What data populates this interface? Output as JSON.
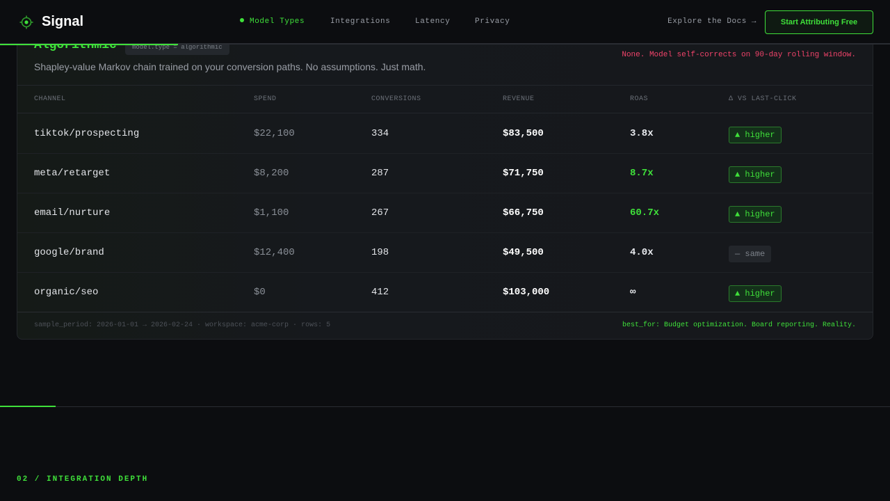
{
  "header": {
    "brand": "Signal",
    "nav": [
      "Model Types",
      "Integrations",
      "Latency",
      "Privacy"
    ],
    "active_nav": "Model Types",
    "docs_link": "Explore the Docs →",
    "cta": "Start Attributing Free"
  },
  "model": {
    "title": "Algorithmic",
    "tag": "model.type = algorithmic",
    "description": "Shapley-value Markov chain trained on your conversion paths. No assumptions. Just math.",
    "risk_note": "None. Model self-corrects on 90-day rolling window."
  },
  "table": {
    "columns": [
      "CHANNEL",
      "SPEND",
      "CONVERSIONS",
      "REVENUE",
      "ROAS",
      "Δ VS LAST-CLICK"
    ],
    "rows": [
      {
        "channel": "tiktok/prospecting",
        "spend": "$22,100",
        "conversions": "334",
        "revenue": "$83,500",
        "roas": "3.8x",
        "delta": "▲ higher"
      },
      {
        "channel": "meta/retarget",
        "spend": "$8,200",
        "conversions": "287",
        "revenue": "$71,750",
        "roas": "8.7x",
        "delta": "▲ higher"
      },
      {
        "channel": "email/nurture",
        "spend": "$1,100",
        "conversions": "267",
        "revenue": "$66,750",
        "roas": "60.7x",
        "delta": "▲ higher"
      },
      {
        "channel": "google/brand",
        "spend": "$12,400",
        "conversions": "198",
        "revenue": "$49,500",
        "roas": "4.0x",
        "delta": "— same"
      },
      {
        "channel": "organic/seo",
        "spend": "$0",
        "conversions": "412",
        "revenue": "$103,000",
        "roas": "∞",
        "delta": "▲ higher"
      }
    ]
  },
  "footer": {
    "meta": "sample_period: 2026-01-01 → 2026-02-24 · workspace: acme-corp · rows: 5",
    "best_for": "best_for: Budget optimization. Board reporting. Reality."
  },
  "section": {
    "label": "02 / INTEGRATION DEPTH"
  },
  "colors": {
    "accent": "#3fe03a",
    "warning": "#f1436a",
    "background": "#0c0d10"
  },
  "icons": {
    "logo": "signal-logo-icon"
  }
}
